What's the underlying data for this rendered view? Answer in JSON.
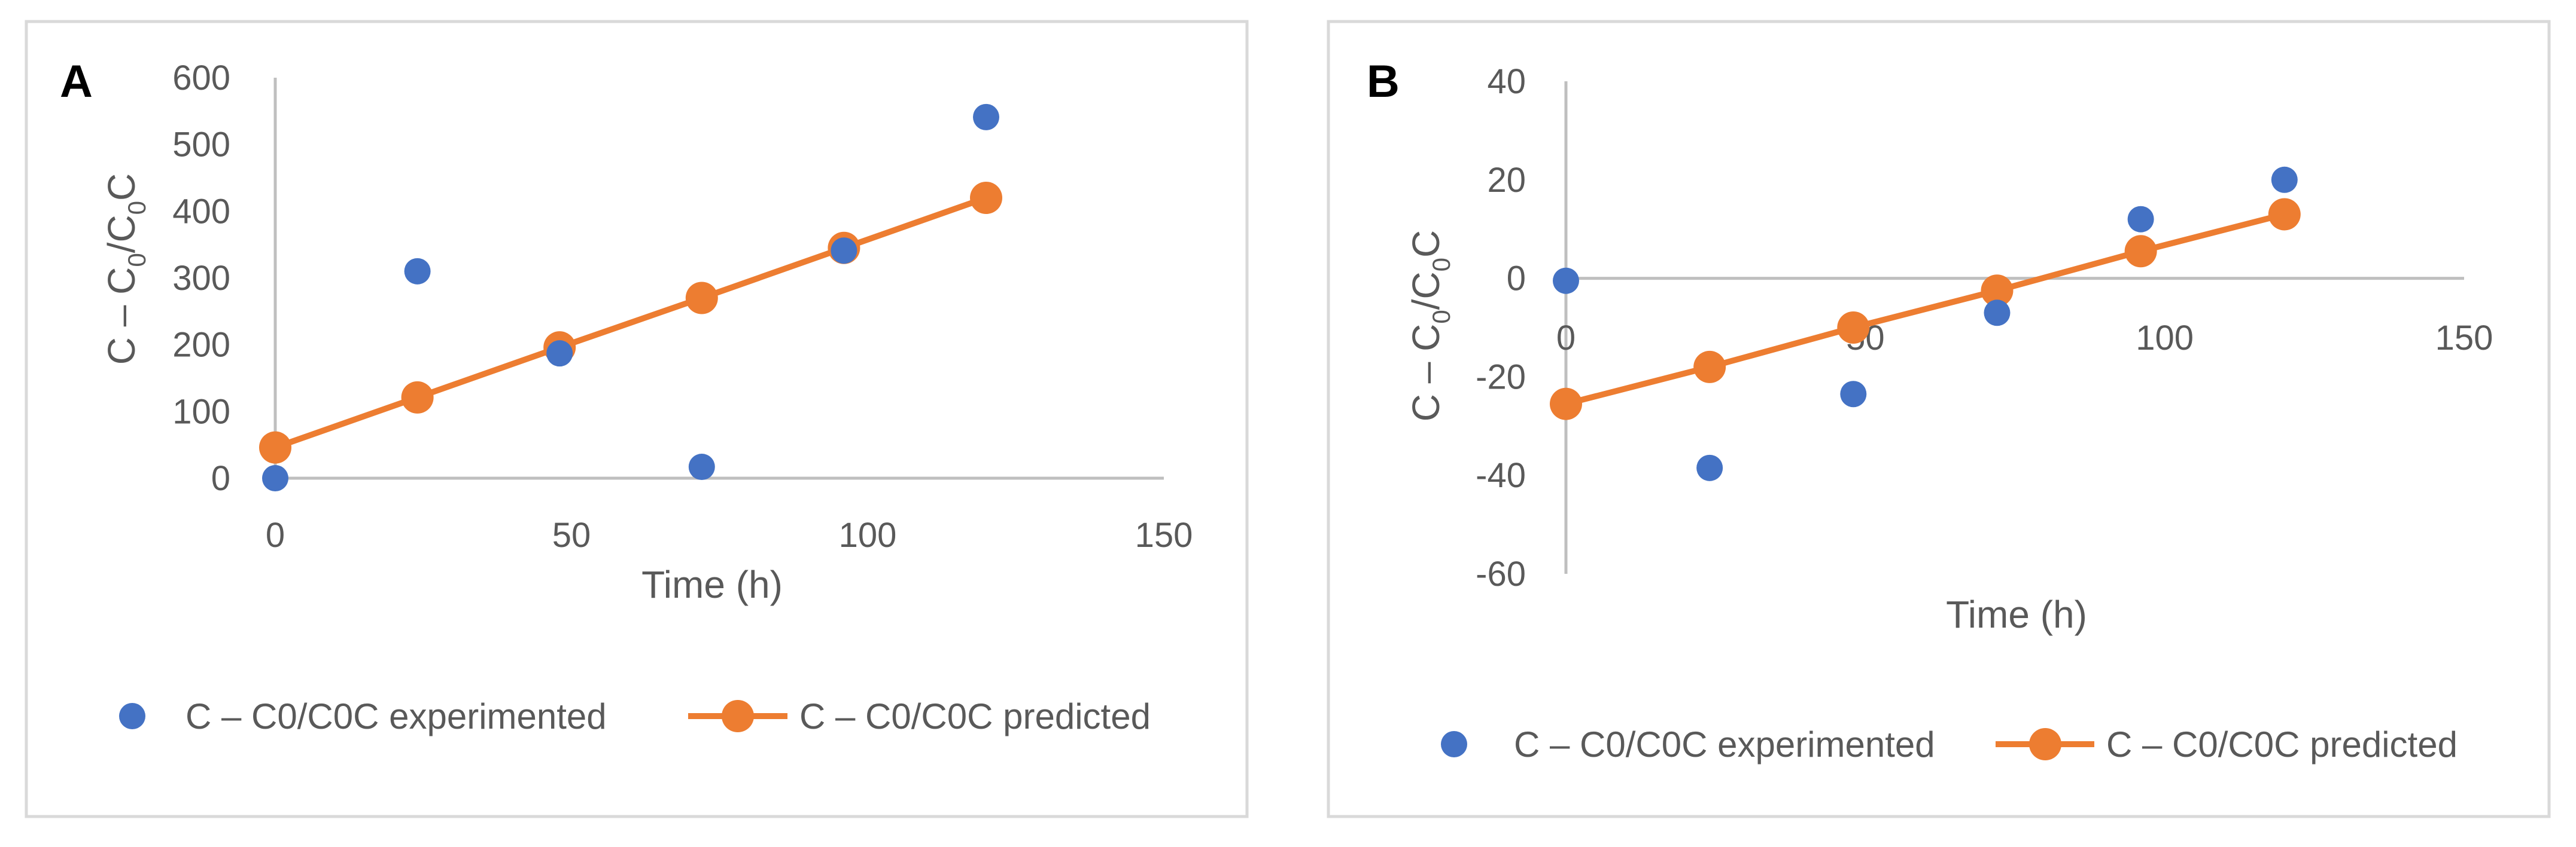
{
  "colors": {
    "experimented": "#4472c4",
    "predicted": "#ed7d31",
    "axis": "#bfbfbf",
    "text": "#595959",
    "frame": "#d9d9d9"
  },
  "chart_data": [
    {
      "type": "scatter",
      "panel_label": "A",
      "title": "",
      "xlabel": "Time (h)",
      "ylabel": "C – C0/C0C",
      "ylabel_parts": {
        "main": "C – C",
        "sub1": "0",
        "mid": "/C",
        "sub2": "0",
        "tail": "C"
      },
      "xlim": [
        0,
        150
      ],
      "ylim": [
        0,
        600
      ],
      "xticks": [
        "0",
        "50",
        "100",
        "150"
      ],
      "yticks": [
        "0",
        "100",
        "200",
        "300",
        "400",
        "500",
        "600"
      ],
      "legend_position": "bottom",
      "series": [
        {
          "name": "C – C0/C0C experimented",
          "marker": "circle",
          "line": false,
          "x": [
            0,
            24,
            48,
            72,
            96,
            120
          ],
          "y": [
            0,
            310,
            187,
            17,
            341,
            541
          ]
        },
        {
          "name": "C – C0/C0C predicted",
          "marker": "circle",
          "line": true,
          "x": [
            0,
            24,
            48,
            72,
            96,
            120
          ],
          "y": [
            46,
            121,
            196,
            270,
            345,
            420
          ]
        }
      ]
    },
    {
      "type": "scatter",
      "panel_label": "B",
      "title": "",
      "xlabel": "Time (h)",
      "ylabel": "C – C0/C0C",
      "ylabel_parts": {
        "main": "C – C",
        "sub1": "0",
        "mid": "/C",
        "sub2": "0",
        "tail": "C"
      },
      "xlim": [
        0,
        150
      ],
      "ylim": [
        -60,
        40
      ],
      "xticks": [
        "0",
        "50",
        "100",
        "150"
      ],
      "yticks": [
        "-60",
        "-40",
        "-20",
        "0",
        "20",
        "40"
      ],
      "legend_position": "bottom",
      "series": [
        {
          "name": "C – C0/C0C experimented",
          "marker": "circle",
          "line": false,
          "x": [
            0,
            24,
            48,
            72,
            96,
            120
          ],
          "y": [
            -0.5,
            -38.5,
            -23.5,
            -7,
            12,
            20
          ]
        },
        {
          "name": "C – C0/C0C predicted",
          "marker": "circle",
          "line": true,
          "x": [
            0,
            24,
            48,
            72,
            96,
            120
          ],
          "y": [
            -25.5,
            -18,
            -10,
            -2.5,
            5.5,
            13
          ]
        }
      ]
    }
  ]
}
